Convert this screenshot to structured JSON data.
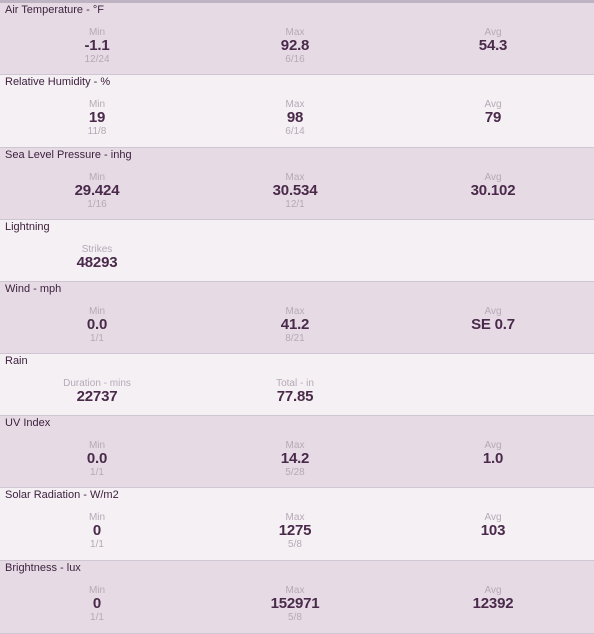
{
  "sections": [
    {
      "title": "Air Temperature - °F",
      "stats": [
        {
          "label": "Min",
          "value": "-1.1",
          "date": "12/24"
        },
        {
          "label": "Max",
          "value": "92.8",
          "date": "6/16"
        },
        {
          "label": "Avg",
          "value": "54.3"
        }
      ]
    },
    {
      "title": "Relative Humidity - %",
      "stats": [
        {
          "label": "Min",
          "value": "19",
          "date": "11/8"
        },
        {
          "label": "Max",
          "value": "98",
          "date": "6/14"
        },
        {
          "label": "Avg",
          "value": "79"
        }
      ]
    },
    {
      "title": "Sea Level Pressure - inhg",
      "stats": [
        {
          "label": "Min",
          "value": "29.424",
          "date": "1/16"
        },
        {
          "label": "Max",
          "value": "30.534",
          "date": "12/1"
        },
        {
          "label": "Avg",
          "value": "30.102"
        }
      ]
    },
    {
      "title": "Lightning",
      "stats": [
        {
          "label": "Strikes",
          "value": "48293"
        }
      ]
    },
    {
      "title": "Wind - mph",
      "stats": [
        {
          "label": "Min",
          "value": "0.0",
          "date": "1/1"
        },
        {
          "label": "Max",
          "value": "41.2",
          "date": "8/21"
        },
        {
          "label": "Avg",
          "value": "SE 0.7"
        }
      ]
    },
    {
      "title": "Rain",
      "stats": [
        {
          "label": "Duration - mins",
          "value": "22737"
        },
        {
          "label": "Total - in",
          "value": "77.85"
        }
      ]
    },
    {
      "title": "UV Index",
      "stats": [
        {
          "label": "Min",
          "value": "0.0",
          "date": "1/1"
        },
        {
          "label": "Max",
          "value": "14.2",
          "date": "5/28"
        },
        {
          "label": "Avg",
          "value": "1.0"
        }
      ]
    },
    {
      "title": "Solar Radiation - W/m2",
      "stats": [
        {
          "label": "Min",
          "value": "0",
          "date": "1/1"
        },
        {
          "label": "Max",
          "value": "1275",
          "date": "5/8"
        },
        {
          "label": "Avg",
          "value": "103"
        }
      ]
    },
    {
      "title": "Brightness - lux",
      "stats": [
        {
          "label": "Min",
          "value": "0",
          "date": "1/1"
        },
        {
          "label": "Max",
          "value": "152971",
          "date": "5/8"
        },
        {
          "label": "Avg",
          "value": "12392"
        }
      ]
    }
  ]
}
